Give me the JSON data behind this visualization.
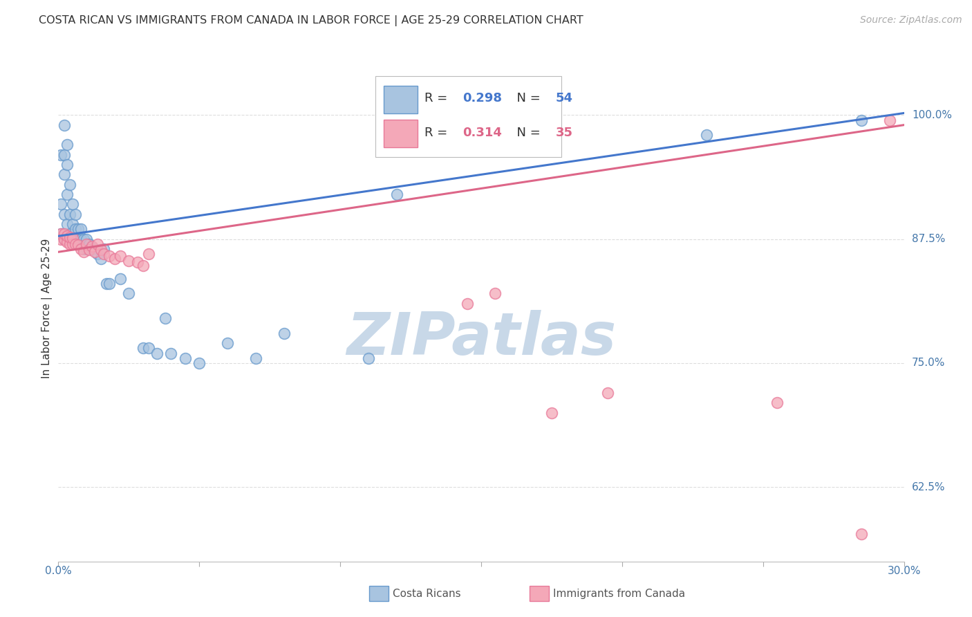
{
  "title": "COSTA RICAN VS IMMIGRANTS FROM CANADA IN LABOR FORCE | AGE 25-29 CORRELATION CHART",
  "source": "Source: ZipAtlas.com",
  "ylabel": "In Labor Force | Age 25-29",
  "yticks": [
    0.625,
    0.75,
    0.875,
    1.0
  ],
  "ytick_labels": [
    "62.5%",
    "75.0%",
    "87.5%",
    "100.0%"
  ],
  "xmin": 0.0,
  "xmax": 0.3,
  "ymin": 0.55,
  "ymax": 1.06,
  "blue_fill": "#A8C4E0",
  "blue_edge": "#6699CC",
  "pink_fill": "#F4A8B8",
  "pink_edge": "#E87898",
  "blue_line_color": "#4477CC",
  "pink_line_color": "#DD6688",
  "legend_r_color": "#4477CC",
  "legend_n_color": "#4477CC",
  "legend_r2_color": "#DD6688",
  "legend_n2_color": "#DD6688",
  "blue_line_x0": 0.0,
  "blue_line_x1": 0.3,
  "blue_line_y0": 0.878,
  "blue_line_y1": 1.002,
  "pink_line_x0": 0.0,
  "pink_line_x1": 0.3,
  "pink_line_y0": 0.862,
  "pink_line_y1": 0.99,
  "blue_x": [
    0.001,
    0.001,
    0.001,
    0.002,
    0.002,
    0.002,
    0.002,
    0.002,
    0.003,
    0.003,
    0.003,
    0.003,
    0.003,
    0.004,
    0.004,
    0.004,
    0.005,
    0.005,
    0.005,
    0.006,
    0.006,
    0.006,
    0.007,
    0.007,
    0.008,
    0.008,
    0.009,
    0.009,
    0.01,
    0.01,
    0.011,
    0.012,
    0.013,
    0.014,
    0.015,
    0.016,
    0.017,
    0.018,
    0.022,
    0.025,
    0.03,
    0.032,
    0.035,
    0.038,
    0.04,
    0.045,
    0.05,
    0.06,
    0.07,
    0.08,
    0.11,
    0.12,
    0.23,
    0.285
  ],
  "blue_y": [
    0.88,
    0.91,
    0.96,
    0.875,
    0.9,
    0.94,
    0.96,
    0.99,
    0.875,
    0.89,
    0.92,
    0.95,
    0.97,
    0.88,
    0.9,
    0.93,
    0.875,
    0.89,
    0.91,
    0.875,
    0.885,
    0.9,
    0.875,
    0.885,
    0.875,
    0.885,
    0.875,
    0.865,
    0.865,
    0.875,
    0.87,
    0.865,
    0.865,
    0.86,
    0.855,
    0.865,
    0.83,
    0.83,
    0.835,
    0.82,
    0.765,
    0.765,
    0.76,
    0.795,
    0.76,
    0.755,
    0.75,
    0.77,
    0.755,
    0.78,
    0.755,
    0.92,
    0.98,
    0.995
  ],
  "pink_x": [
    0.001,
    0.001,
    0.002,
    0.002,
    0.003,
    0.003,
    0.004,
    0.004,
    0.005,
    0.005,
    0.006,
    0.007,
    0.008,
    0.009,
    0.01,
    0.011,
    0.012,
    0.013,
    0.014,
    0.015,
    0.016,
    0.018,
    0.02,
    0.022,
    0.025,
    0.028,
    0.03,
    0.032,
    0.145,
    0.155,
    0.175,
    0.195,
    0.255,
    0.285,
    0.295
  ],
  "pink_y": [
    0.875,
    0.88,
    0.875,
    0.88,
    0.872,
    0.878,
    0.87,
    0.877,
    0.87,
    0.876,
    0.87,
    0.869,
    0.865,
    0.862,
    0.87,
    0.864,
    0.868,
    0.862,
    0.87,
    0.864,
    0.86,
    0.858,
    0.855,
    0.858,
    0.853,
    0.852,
    0.848,
    0.86,
    0.81,
    0.82,
    0.7,
    0.72,
    0.71,
    0.578,
    0.995
  ],
  "watermark_text": "ZIPatlas",
  "watermark_color": "#C8D8E8",
  "bg_color": "#FFFFFF",
  "grid_color": "#DDDDDD",
  "marker_size": 130
}
